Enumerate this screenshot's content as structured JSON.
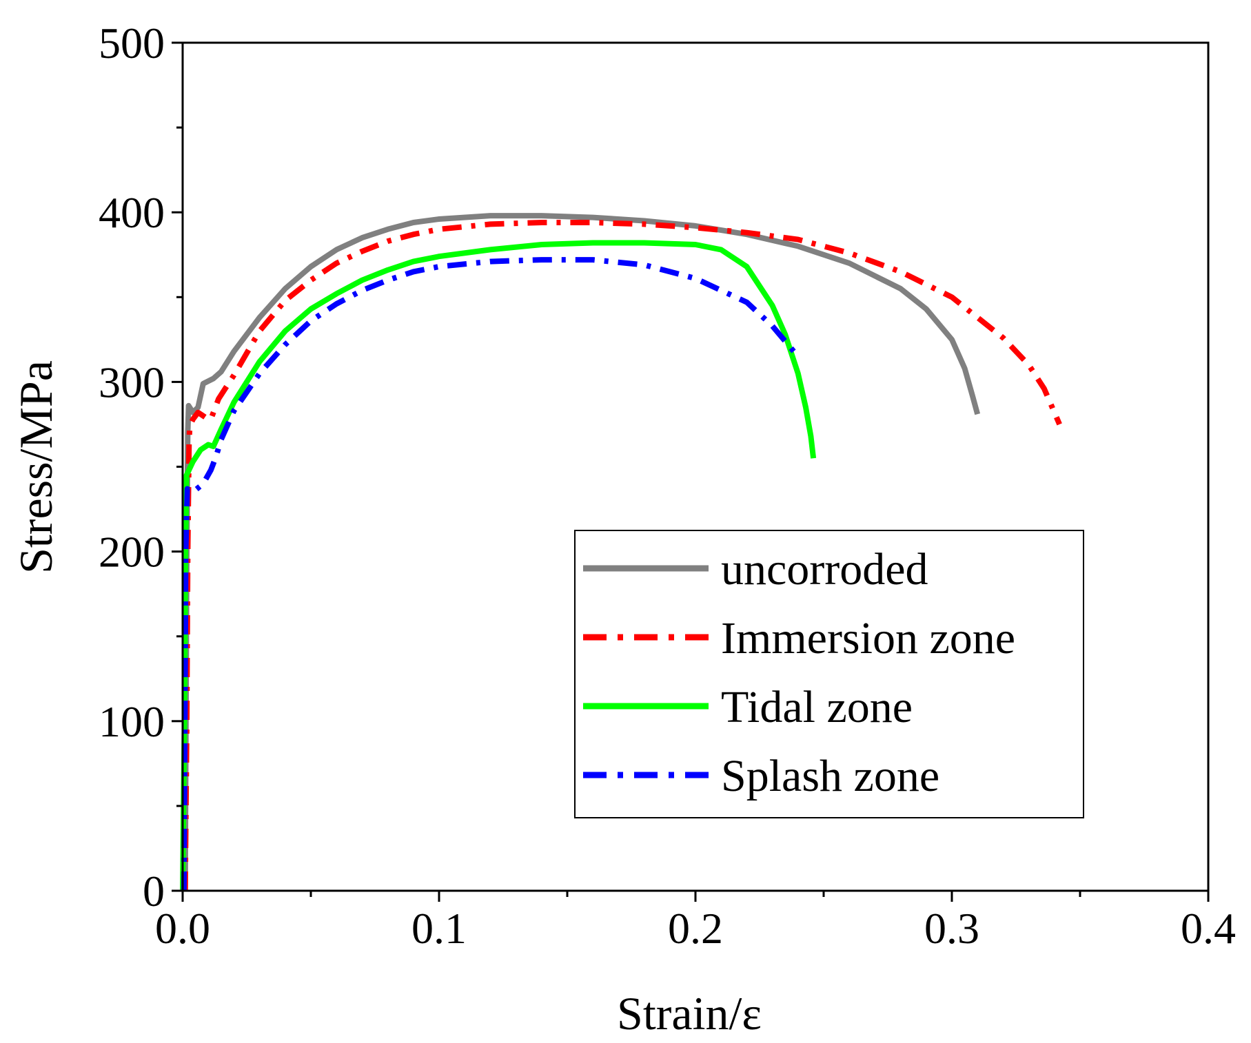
{
  "chart_data": {
    "type": "line",
    "title": "",
    "xlabel": "Strain/ε",
    "ylabel": "Stress/MPa",
    "xlim": [
      0,
      0.4
    ],
    "ylim": [
      0,
      500
    ],
    "x_ticks": [
      0.0,
      0.1,
      0.2,
      0.3,
      0.4
    ],
    "x_tick_labels": [
      "0.0",
      "0.1",
      "0.2",
      "0.3",
      "0.4"
    ],
    "y_ticks": [
      0,
      100,
      200,
      300,
      400,
      500
    ],
    "y_tick_labels": [
      "0",
      "100",
      "200",
      "300",
      "400",
      "500"
    ],
    "grid": false,
    "legend_position": "lower-right",
    "series": [
      {
        "name": "uncorroded",
        "color": "#808080",
        "style": "solid",
        "points": [
          [
            0.001,
            0
          ],
          [
            0.0013,
            100
          ],
          [
            0.0016,
            200
          ],
          [
            0.002,
            270
          ],
          [
            0.0023,
            286
          ],
          [
            0.004,
            282
          ],
          [
            0.006,
            285
          ],
          [
            0.008,
            299
          ],
          [
            0.012,
            302
          ],
          [
            0.015,
            306
          ],
          [
            0.02,
            318
          ],
          [
            0.03,
            338
          ],
          [
            0.04,
            355
          ],
          [
            0.05,
            368
          ],
          [
            0.06,
            378
          ],
          [
            0.07,
            385
          ],
          [
            0.08,
            390
          ],
          [
            0.09,
            394
          ],
          [
            0.1,
            396
          ],
          [
            0.12,
            398
          ],
          [
            0.14,
            398
          ],
          [
            0.16,
            397
          ],
          [
            0.18,
            395
          ],
          [
            0.2,
            392
          ],
          [
            0.22,
            387
          ],
          [
            0.24,
            380
          ],
          [
            0.26,
            370
          ],
          [
            0.28,
            355
          ],
          [
            0.29,
            343
          ],
          [
            0.3,
            325
          ],
          [
            0.305,
            308
          ],
          [
            0.308,
            292
          ],
          [
            0.31,
            281
          ]
        ]
      },
      {
        "name": "Immersion zone",
        "color": "#ff0000",
        "style": "dash-dot",
        "points": [
          [
            0.001,
            0
          ],
          [
            0.0016,
            100
          ],
          [
            0.002,
            200
          ],
          [
            0.0025,
            265
          ],
          [
            0.0028,
            274
          ],
          [
            0.004,
            278
          ],
          [
            0.006,
            282
          ],
          [
            0.009,
            279
          ],
          [
            0.011,
            278
          ],
          [
            0.014,
            290
          ],
          [
            0.02,
            304
          ],
          [
            0.03,
            330
          ],
          [
            0.04,
            348
          ],
          [
            0.05,
            360
          ],
          [
            0.06,
            370
          ],
          [
            0.07,
            377
          ],
          [
            0.08,
            383
          ],
          [
            0.09,
            387
          ],
          [
            0.1,
            390
          ],
          [
            0.12,
            393
          ],
          [
            0.14,
            394
          ],
          [
            0.16,
            394
          ],
          [
            0.18,
            393
          ],
          [
            0.2,
            391
          ],
          [
            0.22,
            388
          ],
          [
            0.24,
            384
          ],
          [
            0.26,
            376
          ],
          [
            0.28,
            365
          ],
          [
            0.3,
            350
          ],
          [
            0.32,
            326
          ],
          [
            0.33,
            310
          ],
          [
            0.336,
            296
          ],
          [
            0.342,
            275
          ]
        ]
      },
      {
        "name": "Tidal zone",
        "color": "#00ff00",
        "style": "solid",
        "points": [
          [
            0,
            0
          ],
          [
            0.0007,
            100
          ],
          [
            0.0011,
            200
          ],
          [
            0.0015,
            245
          ],
          [
            0.004,
            253
          ],
          [
            0.007,
            260
          ],
          [
            0.01,
            263
          ],
          [
            0.012,
            262
          ],
          [
            0.015,
            272
          ],
          [
            0.02,
            288
          ],
          [
            0.03,
            312
          ],
          [
            0.04,
            330
          ],
          [
            0.05,
            343
          ],
          [
            0.06,
            352
          ],
          [
            0.07,
            360
          ],
          [
            0.08,
            366
          ],
          [
            0.09,
            371
          ],
          [
            0.1,
            374
          ],
          [
            0.12,
            378
          ],
          [
            0.14,
            381
          ],
          [
            0.16,
            382
          ],
          [
            0.18,
            382
          ],
          [
            0.2,
            381
          ],
          [
            0.21,
            378
          ],
          [
            0.22,
            368
          ],
          [
            0.23,
            345
          ],
          [
            0.235,
            328
          ],
          [
            0.24,
            305
          ],
          [
            0.243,
            285
          ],
          [
            0.245,
            268
          ],
          [
            0.246,
            255
          ]
        ]
      },
      {
        "name": "Splash zone",
        "color": "#0000ff",
        "style": "dash-dot",
        "points": [
          [
            0.0005,
            0
          ],
          [
            0.0009,
            100
          ],
          [
            0.0012,
            200
          ],
          [
            0.0018,
            237
          ],
          [
            0.004,
            235
          ],
          [
            0.008,
            240
          ],
          [
            0.011,
            248
          ],
          [
            0.013,
            256
          ],
          [
            0.015,
            266
          ],
          [
            0.02,
            283
          ],
          [
            0.03,
            305
          ],
          [
            0.04,
            322
          ],
          [
            0.05,
            336
          ],
          [
            0.06,
            346
          ],
          [
            0.07,
            354
          ],
          [
            0.08,
            360
          ],
          [
            0.09,
            365
          ],
          [
            0.1,
            368
          ],
          [
            0.12,
            371
          ],
          [
            0.14,
            372
          ],
          [
            0.16,
            372
          ],
          [
            0.18,
            369
          ],
          [
            0.2,
            361
          ],
          [
            0.22,
            347
          ],
          [
            0.23,
            333
          ],
          [
            0.24,
            315
          ]
        ]
      }
    ]
  }
}
